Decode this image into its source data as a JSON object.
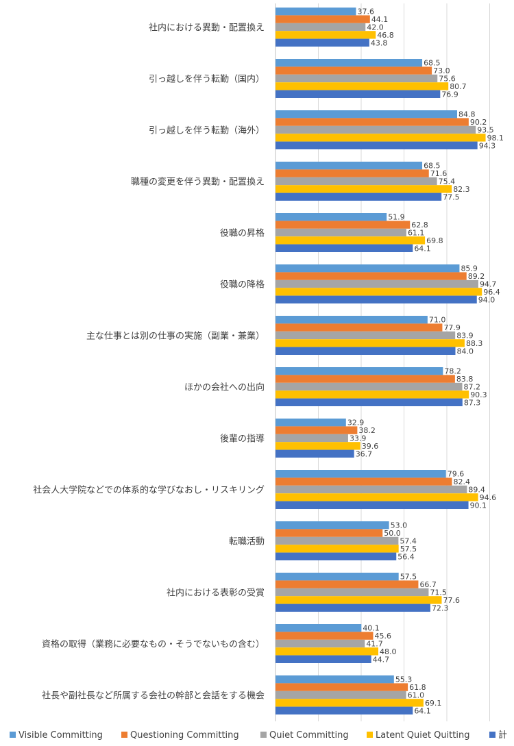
{
  "chart_data": {
    "type": "bar",
    "orientation": "horizontal",
    "categories": [
      "社内における異動・配置換え",
      "引っ越しを伴う転勤（国内）",
      "引っ越しを伴う転勤（海外）",
      "職種の変更を伴う異動・配置換え",
      "役職の昇格",
      "役職の降格",
      "主な仕事とは別の仕事の実施（副業・兼業）",
      "ほかの会社への出向",
      "後輩の指導",
      "社会人大学院などでの体系的な学びなおし・リスキリング",
      "転職活動",
      "社内における表彰の受賞",
      "資格の取得（業務に必要なもの・そうでないもの含む）",
      "社長や副社長など所属する会社の幹部と会話をする機会"
    ],
    "series": [
      {
        "name": "Visible Committing",
        "color": "#5b9bd5",
        "values": [
          37.6,
          68.5,
          84.8,
          68.5,
          51.9,
          85.9,
          71.0,
          78.2,
          32.9,
          79.6,
          53.0,
          57.5,
          40.1,
          55.3
        ]
      },
      {
        "name": "Questioning Committing",
        "color": "#ed7d31",
        "values": [
          44.1,
          73.0,
          90.2,
          71.6,
          62.8,
          89.2,
          77.9,
          83.8,
          38.2,
          82.4,
          50.0,
          66.7,
          45.6,
          61.8
        ]
      },
      {
        "name": "Quiet Committing",
        "color": "#a5a5a5",
        "values": [
          42.0,
          75.6,
          93.5,
          75.4,
          61.1,
          94.7,
          83.9,
          87.2,
          33.9,
          89.4,
          57.4,
          71.5,
          41.7,
          61.0
        ]
      },
      {
        "name": "Latent Quiet Quitting",
        "color": "#ffc000",
        "values": [
          46.8,
          80.7,
          98.1,
          82.3,
          69.8,
          96.4,
          88.3,
          90.3,
          39.6,
          94.6,
          57.5,
          77.6,
          48.0,
          69.1
        ]
      },
      {
        "name": "計",
        "color": "#4472c4",
        "values": [
          43.8,
          76.9,
          94.3,
          77.5,
          64.1,
          94.0,
          84.0,
          87.3,
          36.7,
          90.1,
          56.4,
          72.3,
          44.7,
          64.1
        ]
      }
    ],
    "xlim": [
      0,
      100
    ],
    "gridlines": [
      0,
      20,
      40,
      60,
      80,
      100
    ],
    "value_decimals": 1,
    "grid": true,
    "legend": "bottom",
    "title": "",
    "xlabel": "",
    "ylabel": ""
  }
}
